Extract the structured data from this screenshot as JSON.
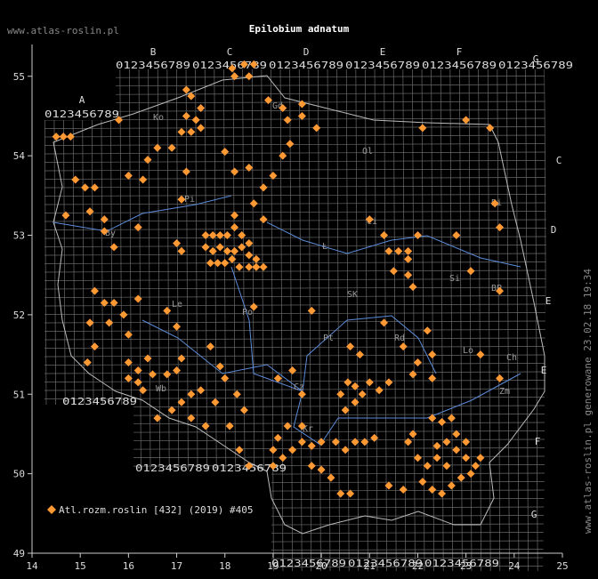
{
  "chart_data": {
    "type": "scatter",
    "title": "Epilobium adnatum",
    "site": "www.atlas-roslin.pl",
    "side_note": "www.atlas-roslin.pl generowane 23.02.18 19:34",
    "legend": "Atl.rozm.roslin [432] (2019) #405",
    "color": "#ff9933",
    "xlim": [
      14,
      25
    ],
    "ylim": [
      49,
      55.4
    ],
    "xticks": [
      14,
      15,
      16,
      17,
      18,
      19,
      20,
      21,
      22,
      23,
      24,
      25
    ],
    "yticks": [
      49,
      50,
      51,
      52,
      53,
      54,
      55
    ],
    "grid_letters": [
      "A",
      "B",
      "C",
      "D",
      "E",
      "F",
      "G"
    ],
    "grid_digits": "0123456789",
    "region_labels": [
      "Ko",
      "Gd",
      "Ol",
      "Bi",
      "Pi",
      "By",
      "Ci",
      "Ł",
      "Le",
      "Po",
      "Si",
      "BP",
      "SK",
      "Pt",
      "Rd",
      "Lo",
      "Ch",
      "Zm",
      "Wb",
      "Cz",
      "Kr"
    ],
    "x": [
      14.5,
      14.65,
      14.8,
      15.8,
      17.2,
      17.3,
      17.5,
      17.2,
      17.4,
      17.1,
      17.3,
      17.5,
      16.9,
      18.15,
      18.4,
      18.6,
      18.2,
      18.5,
      18.9,
      19.2,
      19.6,
      19.6,
      19.3,
      19.35,
      19.2,
      19.0,
      18.8,
      18.6,
      18.8,
      19.9,
      14.9,
      15.1,
      15.3,
      15.2,
      14.7,
      15.5,
      15.5,
      16.0,
      16.3,
      16.4,
      16.6,
      17.2,
      17.1,
      18.0,
      18.2,
      18.5,
      17.6,
      17.75,
      17.9,
      18.05,
      18.2,
      18.35,
      18.5,
      17.6,
      17.75,
      17.9,
      18.05,
      18.2,
      18.35,
      18.5,
      18.65,
      17.7,
      17.85,
      18.0,
      18.15,
      18.3,
      18.5,
      18.65,
      18.8,
      18.2,
      17.0,
      17.1,
      16.2,
      15.7,
      15.3,
      15.5,
      15.7,
      15.9,
      16.2,
      15.2,
      15.6,
      16.0,
      16.8,
      17.0,
      15.3,
      15.15,
      16.0,
      16.2,
      16.4,
      16.0,
      16.2,
      16.5,
      16.8,
      17.0,
      17.1,
      16.3,
      17.3,
      17.5,
      16.6,
      16.9,
      17.1,
      17.3,
      17.6,
      17.8,
      18.1,
      18.3,
      18.5,
      18.25,
      18.4,
      17.9,
      19.0,
      19.0,
      19.2,
      19.4,
      19.6,
      19.8,
      20.0,
      19.1,
      19.3,
      19.6,
      19.8,
      20.0,
      20.2,
      20.4,
      20.6,
      20.3,
      20.5,
      20.7,
      20.9,
      21.1,
      20.4,
      20.55,
      20.7,
      20.85,
      21.0,
      21.2,
      21.4,
      20.7,
      20.5,
      19.6,
      21.8,
      22.0,
      22.2,
      22.4,
      22.6,
      22.8,
      23.0,
      23.2,
      22.4,
      22.6,
      22.8,
      23.0,
      22.3,
      22.5,
      22.7,
      22.1,
      22.3,
      22.5,
      22.7,
      22.9,
      23.1,
      23.3,
      21.4,
      21.7,
      21.9,
      22.2,
      22.3,
      22.0,
      21.9,
      22.3,
      19.8,
      18.6,
      17.7,
      21.8,
      21.9,
      21.3,
      21.6,
      22.0,
      23.6,
      23.7,
      22.8,
      23.1,
      23.7,
      23.7,
      23.3,
      22.1,
      23.0,
      23.5,
      21.0,
      21.4,
      21.5,
      21.8,
      21.8,
      20.6,
      20.8,
      21.3,
      21.7,
      19.1,
      19.4,
      18.0
    ],
    "values": [
      54.24,
      54.24,
      54.24,
      54.45,
      54.83,
      54.75,
      54.6,
      54.5,
      54.45,
      54.3,
      54.3,
      54.35,
      54.1,
      55.1,
      55.15,
      55.15,
      55.0,
      55.0,
      54.7,
      54.6,
      54.65,
      54.5,
      54.45,
      54.15,
      54.0,
      53.75,
      53.6,
      53.4,
      53.2,
      54.35,
      53.7,
      53.6,
      53.6,
      53.3,
      53.25,
      53.2,
      53.05,
      53.75,
      53.7,
      53.95,
      54.1,
      53.8,
      53.45,
      54.05,
      53.8,
      53.85,
      53.0,
      53.0,
      53.0,
      53.0,
      53.1,
      53.0,
      52.9,
      52.85,
      52.8,
      52.85,
      52.8,
      52.8,
      52.85,
      52.75,
      52.7,
      52.65,
      52.65,
      52.65,
      52.7,
      52.6,
      52.6,
      52.6,
      52.6,
      53.25,
      52.9,
      52.8,
      53.1,
      52.85,
      52.3,
      52.15,
      52.15,
      52.0,
      52.2,
      51.9,
      51.9,
      51.75,
      52.05,
      51.85,
      51.6,
      51.4,
      51.4,
      51.3,
      51.45,
      51.2,
      51.15,
      51.25,
      51.25,
      51.3,
      51.45,
      51.05,
      51.0,
      51.05,
      50.7,
      50.8,
      50.9,
      50.7,
      50.6,
      50.9,
      50.6,
      50.3,
      50.1,
      51.0,
      50.8,
      51.35,
      50.3,
      50.1,
      50.2,
      50.3,
      50.4,
      50.35,
      50.4,
      50.45,
      50.6,
      50.6,
      50.1,
      50.05,
      49.95,
      49.75,
      49.75,
      50.4,
      50.3,
      50.4,
      50.4,
      50.45,
      51.0,
      51.15,
      51.1,
      51.0,
      51.15,
      51.05,
      51.15,
      50.9,
      50.8,
      51.0,
      50.4,
      50.2,
      50.1,
      50.2,
      50.1,
      50.3,
      50.2,
      50.1,
      50.35,
      50.4,
      50.5,
      50.4,
      50.7,
      50.65,
      50.7,
      49.9,
      49.8,
      49.75,
      49.85,
      49.95,
      50.0,
      50.2,
      49.85,
      49.8,
      50.5,
      51.8,
      51.5,
      51.4,
      51.25,
      51.2,
      52.05,
      52.1,
      51.6,
      52.5,
      52.35,
      53.0,
      52.8,
      53.0,
      53.4,
      53.1,
      53.0,
      52.55,
      52.3,
      51.2,
      51.5,
      54.35,
      54.45,
      54.35,
      53.2,
      52.8,
      52.55,
      52.8,
      52.7,
      51.6,
      51.5,
      51.9,
      51.6,
      51.2,
      51.3,
      51.2
    ]
  }
}
